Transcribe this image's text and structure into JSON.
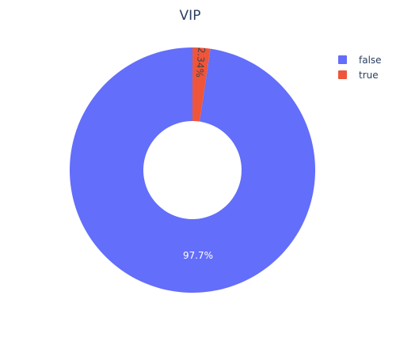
{
  "chart_data": {
    "type": "pie",
    "title": "VIP",
    "hole": true,
    "legend_position": "top-right",
    "categories": [
      "false",
      "true"
    ],
    "values": [
      97.66,
      2.34
    ],
    "labels": [
      "97.7%",
      "2.34%"
    ],
    "colors": [
      "#636efa",
      "#ef553b"
    ]
  }
}
